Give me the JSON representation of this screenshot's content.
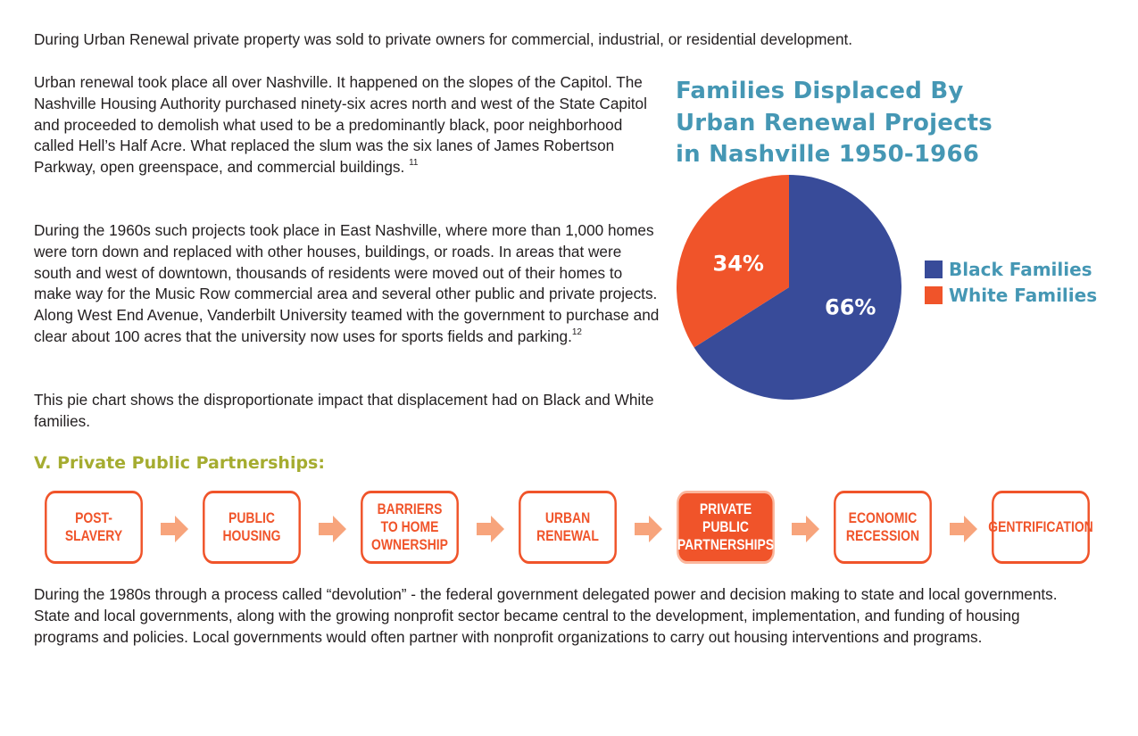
{
  "paragraphs": {
    "p1": "During Urban Renewal private property was sold to private owners for commercial, industrial, or residential development.",
    "p2": "Urban renewal took place all over Nashville. It happened on the slopes of the Capitol. The Nashville Housing Authority purchased ninety-six acres north and west of the State Capitol and proceeded to demolish what used to be a predominantly black, poor neighborhood called Hell’s Half Acre. What replaced the slum was the six lanes of James Robertson Parkway, open greenspace, and commercial buildings.",
    "p2_ref": "11",
    "p3": "During the 1960s such projects took place in East Nashville, where more than 1,000 homes were torn down and replaced with other houses, buildings, or roads. In areas that were south and west of downtown, thousands of residents were moved out of their homes to make way for the Music Row commercial area and several other public and private projects. Along West End Avenue, Vanderbilt University teamed with the government to purchase and clear about 100 acres that the university now uses for sports fields and parking.",
    "p3_ref": "12",
    "p4": "This pie chart shows the disproportionate impact that displacement had on Black and White families.",
    "p5": "During the 1980s through a process called “devolution” - the federal government delegated power and decision making to state and local governments.  State and local governments, along with the growing nonprofit sector became central to the development, implementation, and funding of housing programs and policies.  Local governments would often partner with nonprofit organizations to carry out housing interventions and programs."
  },
  "chart_data": {
    "type": "pie",
    "title": "Families Displaced By Urban Renewal Projects in Nashville 1950-1966",
    "title_lines": [
      "Families Displaced By",
      "Urban Renewal Projects",
      "in Nashville 1950-1966"
    ],
    "categories": [
      "Black Families",
      "White Families"
    ],
    "values": [
      66,
      34
    ],
    "value_labels": [
      "66%",
      "34%"
    ],
    "colors": [
      "#384b99",
      "#f0542a"
    ],
    "legend_position": "right"
  },
  "section": {
    "heading": "V. Private Public Partnerships:"
  },
  "timeline": {
    "steps": [
      {
        "label": "POST-SLAVERY",
        "active": false
      },
      {
        "label": "PUBLIC HOUSING",
        "active": false
      },
      {
        "label": "BARRIERS\nTO HOME\nOWNERSHIP",
        "active": false
      },
      {
        "label": "URBAN\nRENEWAL",
        "active": false
      },
      {
        "label": "PRIVATE PUBLIC\nPARTNERSHIPS",
        "active": true
      },
      {
        "label": "ECONOMIC\nRECESSION",
        "active": false
      },
      {
        "label": "GENTRIFICATION",
        "active": false
      }
    ],
    "accent_color": "#f0542a",
    "arrow_color": "#f7a47c"
  }
}
